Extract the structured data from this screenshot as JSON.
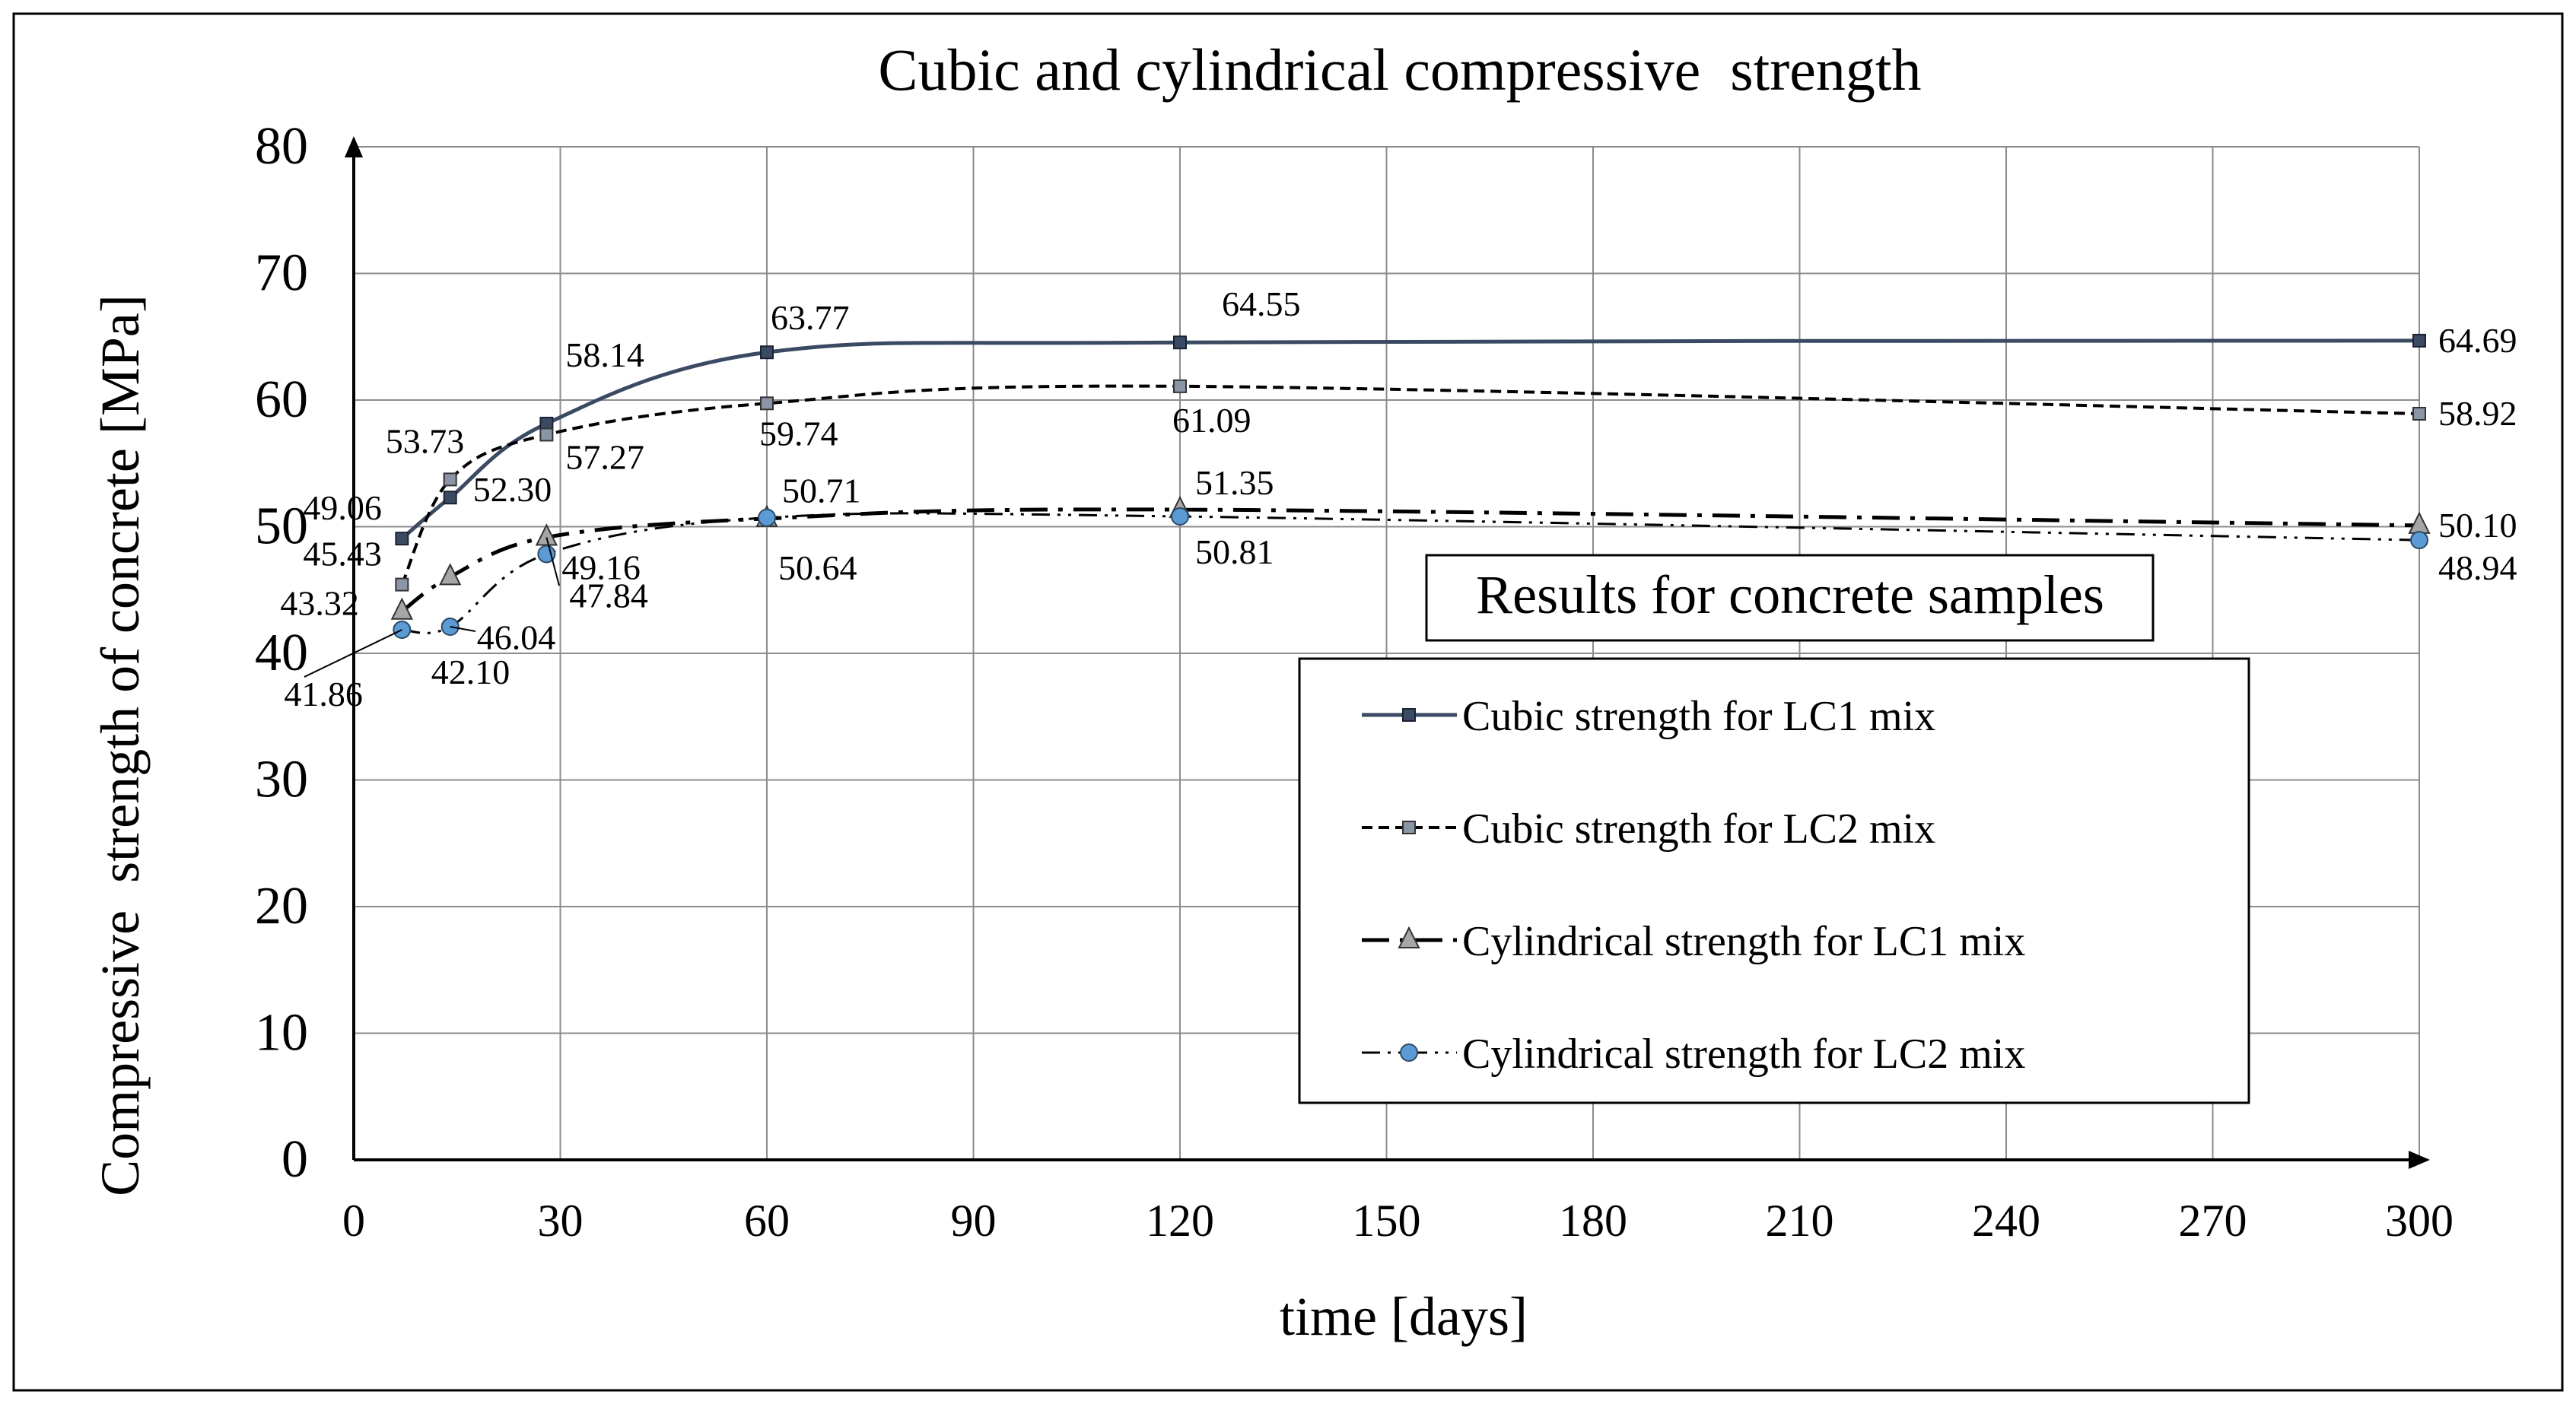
{
  "chart_data": {
    "type": "line",
    "title": "Cubic and cylindrical compressive  strength",
    "xlabel": "time [days]",
    "ylabel": "Compressive  strength of concrete [MPa]",
    "xlim": [
      0,
      300
    ],
    "ylim": [
      0,
      80
    ],
    "xticks": [
      0,
      30,
      60,
      90,
      120,
      150,
      180,
      210,
      240,
      270,
      300
    ],
    "yticks": [
      0,
      10,
      20,
      30,
      40,
      50,
      60,
      70,
      80
    ],
    "grid": true,
    "x": [
      7,
      14,
      28,
      60,
      120,
      300
    ],
    "legend_title": "Results for concrete samples",
    "legend_position": "bottom-right",
    "series": [
      {
        "name": "Cubic strength for LC1 mix",
        "values": [
          49.06,
          52.3,
          58.14,
          63.77,
          64.55,
          64.69
        ],
        "labels": [
          "49.06",
          "52.30",
          "58.14",
          "63.77",
          "64.55",
          "64.69"
        ],
        "color": "#3b4a63",
        "marker": "square",
        "style": "solid"
      },
      {
        "name": "Cubic strength for LC2 mix",
        "values": [
          45.43,
          53.73,
          57.27,
          59.74,
          61.09,
          58.92
        ],
        "labels": [
          "45.43",
          "53.73",
          "57.27",
          "59.74",
          "61.09",
          "58.92"
        ],
        "color": "#000000",
        "marker": "square-light",
        "style": "dashed"
      },
      {
        "name": "Cylindrical strength for LC1 mix",
        "values": [
          43.32,
          46.04,
          49.16,
          50.64,
          51.35,
          50.1
        ],
        "labels": [
          "43.32",
          "46.04",
          "49.16",
          "50.64",
          "51.35",
          "50.10"
        ],
        "color": "#000000",
        "marker": "triangle",
        "style": "dashdot"
      },
      {
        "name": "Cylindrical strength for LC2 mix",
        "values": [
          41.86,
          42.1,
          47.84,
          50.71,
          50.81,
          48.94
        ],
        "labels": [
          "41.86",
          "42.10",
          "47.84",
          "50.71",
          "50.81",
          "48.94"
        ],
        "color": "#000000",
        "marker": "circle",
        "style": "dashdotdot"
      }
    ]
  }
}
